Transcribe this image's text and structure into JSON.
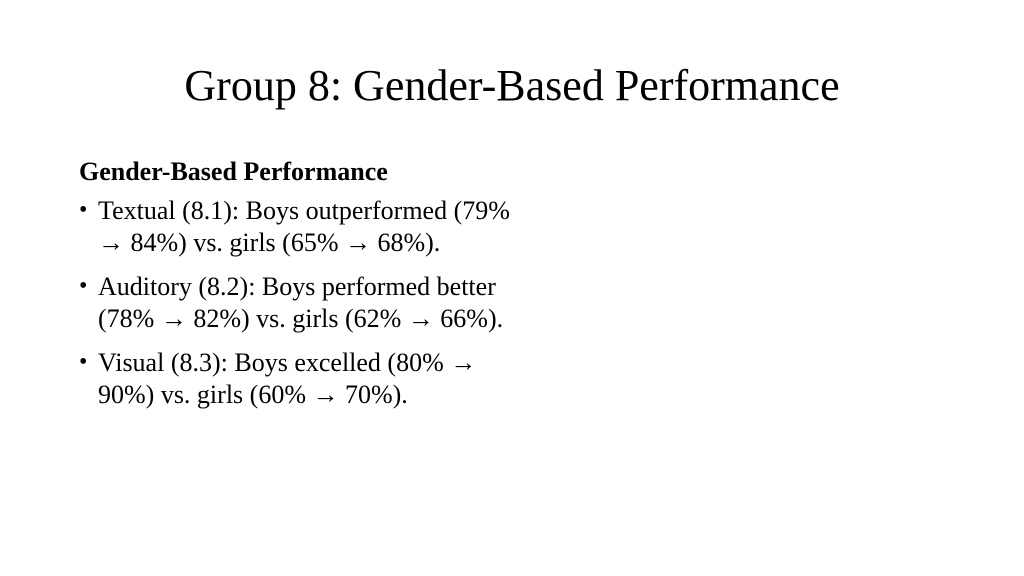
{
  "slide": {
    "title": "Group 8: Gender-Based Performance",
    "heading": "Gender-Based Performance",
    "bullet_symbol": "•",
    "bullets": [
      "Textual (8.1): Boys outperformed (79% → 84%) vs. girls (65% → 68%).",
      "Auditory (8.2): Boys performed better (78% → 82%) vs. girls (62% → 66%).",
      "Visual (8.3): Boys excelled (80% → 90%) vs. girls (60% → 70%)."
    ]
  }
}
